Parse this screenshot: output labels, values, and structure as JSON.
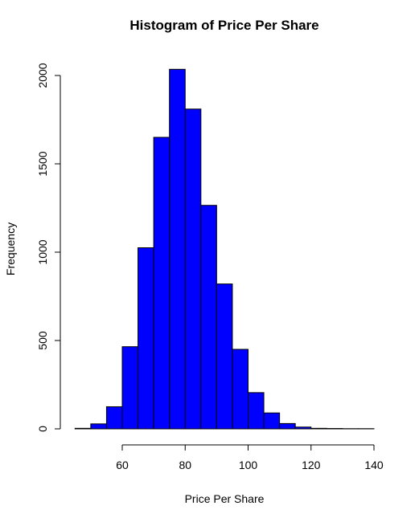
{
  "chart_data": {
    "type": "bar",
    "title": "Histogram of Price Per Share",
    "xlabel": "Price Per Share",
    "ylabel": "Frequency",
    "bin_width": 5,
    "bins": [
      {
        "start": 45,
        "end": 50,
        "count": 3
      },
      {
        "start": 50,
        "end": 55,
        "count": 28
      },
      {
        "start": 55,
        "end": 60,
        "count": 125
      },
      {
        "start": 60,
        "end": 65,
        "count": 465
      },
      {
        "start": 65,
        "end": 70,
        "count": 1025
      },
      {
        "start": 70,
        "end": 75,
        "count": 1650
      },
      {
        "start": 75,
        "end": 80,
        "count": 2035
      },
      {
        "start": 80,
        "end": 85,
        "count": 1810
      },
      {
        "start": 85,
        "end": 90,
        "count": 1265
      },
      {
        "start": 90,
        "end": 95,
        "count": 820
      },
      {
        "start": 95,
        "end": 100,
        "count": 450
      },
      {
        "start": 100,
        "end": 105,
        "count": 205
      },
      {
        "start": 105,
        "end": 110,
        "count": 90
      },
      {
        "start": 110,
        "end": 115,
        "count": 30
      },
      {
        "start": 115,
        "end": 120,
        "count": 10
      },
      {
        "start": 120,
        "end": 125,
        "count": 3
      },
      {
        "start": 125,
        "end": 130,
        "count": 2
      },
      {
        "start": 130,
        "end": 135,
        "count": 1
      },
      {
        "start": 135,
        "end": 140,
        "count": 1
      }
    ],
    "xlim": [
      45,
      140
    ],
    "ylim": [
      0,
      2035
    ],
    "x_ticks": [
      60,
      80,
      100,
      120,
      140
    ],
    "y_ticks": [
      0,
      500,
      1000,
      1500,
      2000
    ],
    "bar_color": "#0000ff",
    "grid": false
  }
}
